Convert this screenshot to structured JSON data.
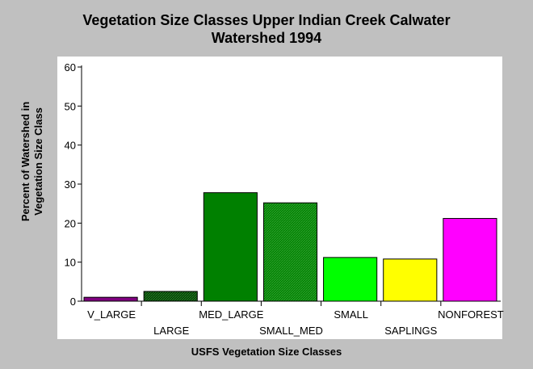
{
  "chart_data": {
    "type": "bar",
    "title_lines": [
      "Vegetation Size Classes Upper Indian Creek Calwater",
      "Watershed 1994"
    ],
    "ylabel_lines": [
      "Percent of Watershed in",
      "Vegetation Size Class"
    ],
    "xlabel": "USFS Vegetation Size Classes",
    "categories": [
      "V_LARGE",
      "LARGE",
      "MED_LARGE",
      "SMALL_MED",
      "SMALL",
      "SAPLINGS",
      "NONFOREST"
    ],
    "values": [
      1.0,
      2.5,
      27.8,
      25.2,
      11.2,
      10.8,
      21.2
    ],
    "colors": [
      "#800080",
      "#004000",
      "#008000",
      "#008000",
      "#00ff00",
      "#ffff00",
      "#ff00ff"
    ],
    "patterns": [
      "solid",
      "hatch",
      "solid",
      "hatch",
      "solid",
      "solid",
      "solid"
    ],
    "ylim": [
      0,
      60
    ],
    "yticks": [
      0,
      10,
      20,
      30,
      40,
      50,
      60
    ],
    "grid": false,
    "legend": "none"
  }
}
